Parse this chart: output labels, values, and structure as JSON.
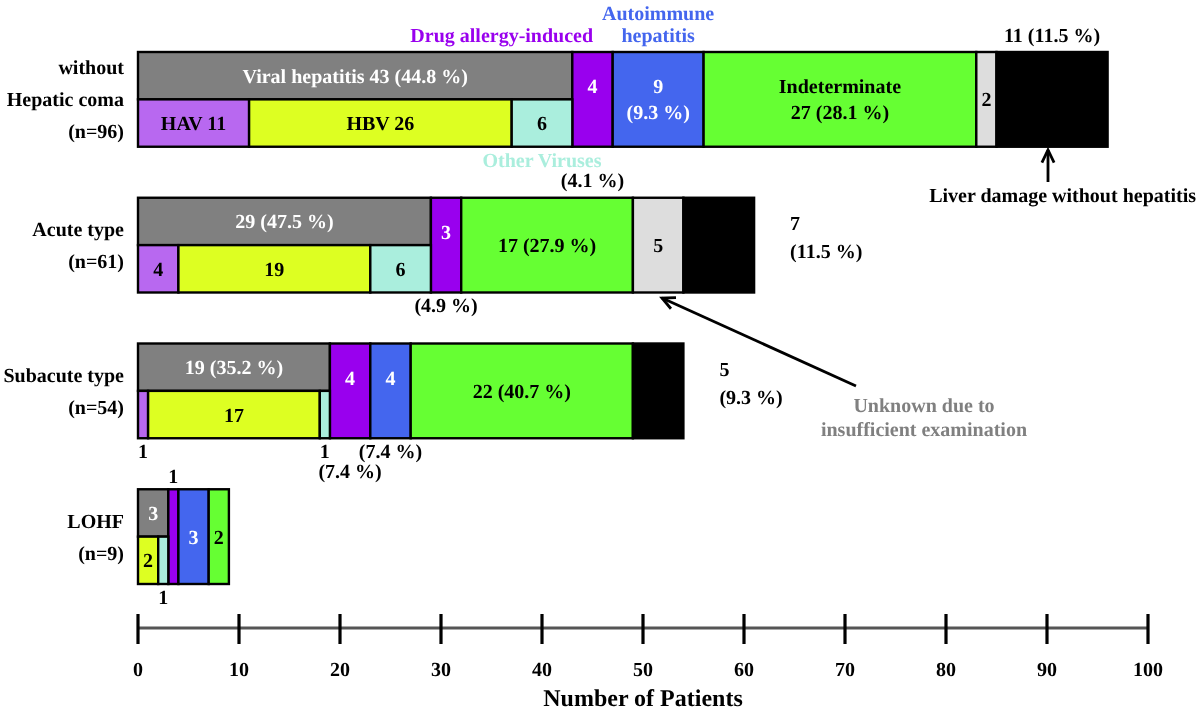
{
  "chart_data": [
    {
      "type": "bar",
      "orientation": "horizontal",
      "stacked": true,
      "xlabel": "Number of Patients",
      "xlim": [
        0,
        100
      ],
      "xticks": [
        0,
        10,
        20,
        30,
        40,
        50,
        60,
        70,
        80,
        90,
        100
      ],
      "categories": [
        "without\nHepatic coma\n(n=96)",
        "Acute type\n(n=61)",
        "Subacute type\n(n=54)",
        "LOHF\n(n=9)"
      ],
      "series": [
        {
          "color": "#808080",
          "values": [
            43,
            29,
            19,
            3
          ],
          "value_labels": [
            "Viral hepatitis 43 (44.8 %)",
            "29 (47.5 %)",
            "19 (35.2 %)",
            "3"
          ]
        },
        {
          "name": "Drug allergy-induced",
          "color": "#9900ee",
          "values": [
            4,
            3,
            4,
            1
          ],
          "value_labels": [
            "4\n(4.1 %)",
            "3\n(4.9 %)",
            "4\n(7.4 %)",
            "1"
          ]
        },
        {
          "name": "Autoimmune\nhepatitis",
          "color": "#4466ee",
          "values": [
            9,
            0,
            4,
            3
          ],
          "value_labels": [
            "9\n(9.3 %)",
            null,
            "4\n(7.4 %)",
            "3"
          ]
        },
        {
          "color": "#66ff33",
          "values": [
            27,
            17,
            22,
            2
          ],
          "value_labels": [
            "Indeterminate\n27 (28.1 %)",
            "17 (27.9 %)",
            "22 (40.7 %)",
            "2"
          ]
        },
        {
          "color": "#dddddd",
          "values": [
            2,
            5,
            0,
            0
          ],
          "value_labels": [
            "2",
            "5",
            null,
            null
          ]
        },
        {
          "color": "#000000",
          "values": [
            11,
            7,
            5,
            0
          ],
          "value_labels": [
            "11 (11.5 %)",
            "7\n(11.5 %)",
            "5\n(9.3 %)",
            null
          ]
        }
      ],
      "annotations": [
        "Liver damage without hepatitis",
        "Unknown due to\ninsufficient examination"
      ]
    },
    {
      "type": "bar",
      "orientation": "horizontal",
      "stacked": true,
      "xlim": [
        0,
        100
      ],
      "categories": [
        null,
        null,
        null,
        null
      ],
      "series": [
        {
          "color": "#b868f0",
          "values": [
            11,
            4,
            1,
            0
          ],
          "value_labels": [
            "HAV 11",
            "4",
            "1",
            null
          ]
        },
        {
          "color": "#ddff22",
          "values": [
            26,
            19,
            17,
            2
          ],
          "value_labels": [
            "HBV 26",
            "19",
            "17",
            "2"
          ]
        },
        {
          "name": "Other Viruses",
          "color": "#aaeedd",
          "values": [
            6,
            6,
            1,
            1
          ],
          "value_labels": [
            "6",
            "6",
            "1",
            "1"
          ]
        }
      ]
    }
  ]
}
